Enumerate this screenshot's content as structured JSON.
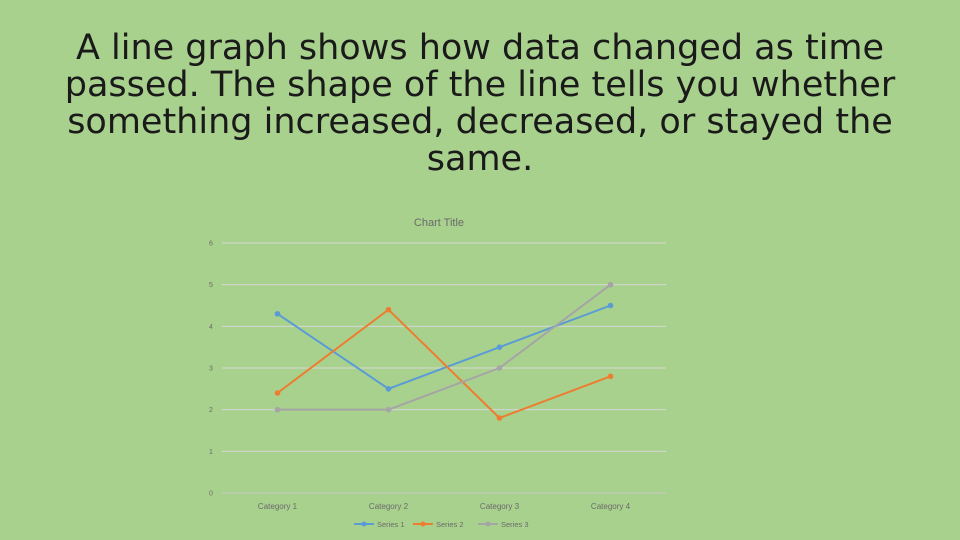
{
  "slide": {
    "heading_lines": [
      "A line graph shows how data changed as time",
      "passed.  The shape of the line tells you whether",
      "something increased, decreased, or stayed the",
      "same."
    ]
  },
  "colors": {
    "background": "#a9d18e",
    "series_1": "#5b9bd5",
    "series_2": "#ed7d31",
    "series_3": "#a5a5a5"
  },
  "chart_data": {
    "type": "line",
    "title": "Chart Title",
    "xlabel": "",
    "ylabel": "",
    "categories": [
      "Category 1",
      "Category 2",
      "Category 3",
      "Category 4"
    ],
    "ylim": [
      0,
      6
    ],
    "yticks": [
      "0",
      "1",
      "2",
      "3",
      "4",
      "5",
      "6"
    ],
    "grid": true,
    "legend_position": "bottom",
    "series": [
      {
        "name": "Series 1",
        "values": [
          4.3,
          2.5,
          3.5,
          4.5
        ],
        "color": "#5b9bd5"
      },
      {
        "name": "Series 2",
        "values": [
          2.4,
          4.4,
          1.8,
          2.8
        ],
        "color": "#ed7d31"
      },
      {
        "name": "Series 3",
        "values": [
          2,
          2,
          3,
          5
        ],
        "color": "#a5a5a5"
      }
    ]
  }
}
